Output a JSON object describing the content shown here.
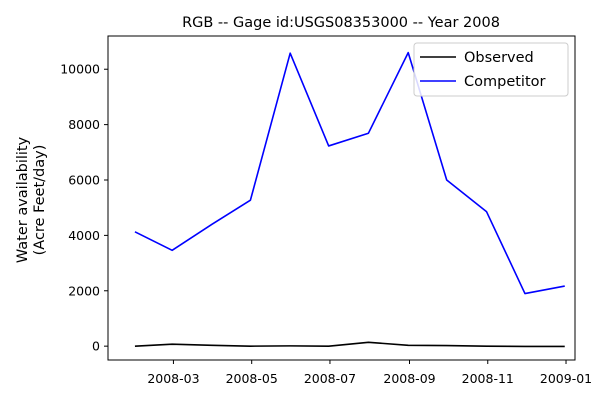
{
  "chart_data": {
    "type": "line",
    "title": "RGB -- Gage id:USGS08353000 -- Year 2008",
    "ylabel_lines": [
      "Water availability",
      "(Acre Feet/day)"
    ],
    "xlabel": "",
    "x": [
      "2008-01-31",
      "2008-02-29",
      "2008-03-31",
      "2008-04-30",
      "2008-05-31",
      "2008-06-30",
      "2008-07-31",
      "2008-08-31",
      "2008-09-30",
      "2008-10-31",
      "2008-11-30",
      "2008-12-31"
    ],
    "xlim": [
      "2008-01-10",
      "2009-01-08"
    ],
    "x_ticks": [
      "2008-03",
      "2008-05",
      "2008-07",
      "2008-09",
      "2008-11",
      "2009-01"
    ],
    "ylim": [
      -500,
      11200
    ],
    "y_ticks": [
      0,
      2000,
      4000,
      6000,
      8000,
      10000
    ],
    "grid": false,
    "legend_position": "top-right",
    "series": [
      {
        "name": "Observed",
        "color": "#000000",
        "values": [
          0,
          70,
          30,
          0,
          10,
          0,
          140,
          30,
          20,
          0,
          -10,
          -10
        ]
      },
      {
        "name": "Competitor",
        "color": "#0000ff",
        "values": [
          4130,
          3460,
          4400,
          5270,
          10580,
          7230,
          7690,
          10600,
          6000,
          4860,
          1900,
          2170
        ]
      }
    ]
  }
}
